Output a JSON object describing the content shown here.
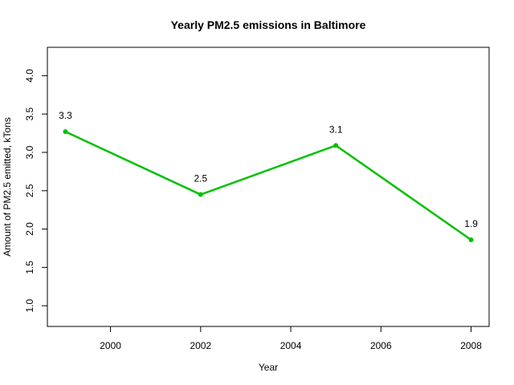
{
  "chart_data": {
    "type": "line",
    "title": "Yearly PM2.5 emissions in Baltimore",
    "xlabel": "Year",
    "ylabel": "Amount of PM2.5 emitted, kTons",
    "xlim": [
      1998.6,
      2008.4
    ],
    "ylim": [
      0.73,
      4.37
    ],
    "x_ticks": [
      2000,
      2002,
      2004,
      2006,
      2008
    ],
    "x_tick_labels": [
      "2000",
      "2002",
      "2004",
      "2006",
      "2008"
    ],
    "y_ticks": [
      1.0,
      1.5,
      2.0,
      2.5,
      3.0,
      3.5,
      4.0
    ],
    "y_tick_labels": [
      "1.0",
      "1.5",
      "2.0",
      "2.5",
      "3.0",
      "3.5",
      "4.0"
    ],
    "x": [
      1999,
      2002,
      2005,
      2008
    ],
    "values": [
      3.27,
      2.45,
      3.09,
      1.86
    ],
    "data_labels": [
      "3.3",
      "2.5",
      "3.1",
      "1.9"
    ],
    "series_color": "#00c000",
    "grid": false,
    "legend": "none"
  }
}
